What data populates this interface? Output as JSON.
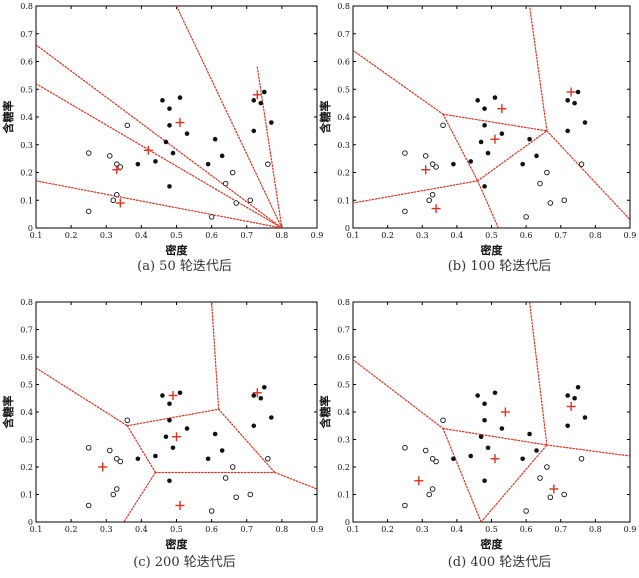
{
  "colors": {
    "boundary": "#e0301e",
    "centroid": "#e0301e",
    "point": "#111111",
    "frame": "#000000"
  },
  "chart_data": [
    {
      "type": "scatter",
      "title": "(a) 50 轮迭代后",
      "xlabel": "密度",
      "ylabel": "含糖率",
      "xlim": [
        0.1,
        0.9
      ],
      "ylim": [
        0,
        0.8
      ],
      "xticks": [
        "0.1",
        "0.2",
        "0.3",
        "0.4",
        "0.5",
        "0.6",
        "0.7",
        "0.8",
        "0.9"
      ],
      "yticks": [
        "0",
        "0.1",
        "0.2",
        "0.3",
        "0.4",
        "0.5",
        "0.6",
        "0.7",
        "0.8"
      ],
      "filled_points": [
        [
          0.36,
          0.37
        ],
        [
          0.46,
          0.46
        ],
        [
          0.48,
          0.43
        ],
        [
          0.51,
          0.47
        ],
        [
          0.48,
          0.37
        ],
        [
          0.53,
          0.34
        ],
        [
          0.47,
          0.31
        ],
        [
          0.44,
          0.24
        ],
        [
          0.39,
          0.23
        ],
        [
          0.49,
          0.27
        ],
        [
          0.48,
          0.15
        ],
        [
          0.61,
          0.32
        ],
        [
          0.63,
          0.26
        ],
        [
          0.72,
          0.46
        ],
        [
          0.74,
          0.45
        ],
        [
          0.75,
          0.49
        ],
        [
          0.77,
          0.38
        ],
        [
          0.72,
          0.35
        ],
        [
          0.59,
          0.23
        ]
      ],
      "open_points": [
        [
          0.36,
          0.37
        ],
        [
          0.25,
          0.27
        ],
        [
          0.31,
          0.26
        ],
        [
          0.34,
          0.22
        ],
        [
          0.33,
          0.12
        ],
        [
          0.25,
          0.06
        ],
        [
          0.32,
          0.1
        ],
        [
          0.33,
          0.23
        ],
        [
          0.64,
          0.16
        ],
        [
          0.66,
          0.2
        ],
        [
          0.6,
          0.04
        ],
        [
          0.67,
          0.09
        ],
        [
          0.71,
          0.1
        ],
        [
          0.76,
          0.23
        ]
      ],
      "centroids": [
        [
          0.33,
          0.21
        ],
        [
          0.42,
          0.28
        ],
        [
          0.51,
          0.38
        ],
        [
          0.73,
          0.48
        ],
        [
          0.34,
          0.09
        ]
      ],
      "boundaries": [
        [
          [
            0.1,
            0.66
          ],
          [
            0.8,
            0.0
          ]
        ],
        [
          [
            0.1,
            0.52
          ],
          [
            0.8,
            0.0
          ]
        ],
        [
          [
            0.1,
            0.17
          ],
          [
            0.8,
            0.0
          ]
        ],
        [
          [
            0.5,
            0.8
          ],
          [
            0.8,
            0.0
          ]
        ],
        [
          [
            0.73,
            0.58
          ],
          [
            0.8,
            0.0
          ]
        ]
      ]
    },
    {
      "type": "scatter",
      "title": "(b) 100 轮迭代后",
      "xlabel": "密度",
      "ylabel": "含糖率",
      "xlim": [
        0.1,
        0.9
      ],
      "ylim": [
        0,
        0.8
      ],
      "xticks": [
        "0.1",
        "0.2",
        "0.3",
        "0.4",
        "0.5",
        "0.6",
        "0.7",
        "0.8",
        "0.9"
      ],
      "yticks": [
        "0",
        "0.1",
        "0.2",
        "0.3",
        "0.4",
        "0.5",
        "0.6",
        "0.7",
        "0.8"
      ],
      "filled_points": [
        [
          0.36,
          0.37
        ],
        [
          0.46,
          0.46
        ],
        [
          0.48,
          0.43
        ],
        [
          0.51,
          0.47
        ],
        [
          0.48,
          0.37
        ],
        [
          0.53,
          0.34
        ],
        [
          0.47,
          0.31
        ],
        [
          0.44,
          0.24
        ],
        [
          0.39,
          0.23
        ],
        [
          0.49,
          0.27
        ],
        [
          0.48,
          0.15
        ],
        [
          0.61,
          0.32
        ],
        [
          0.63,
          0.26
        ],
        [
          0.72,
          0.46
        ],
        [
          0.74,
          0.45
        ],
        [
          0.75,
          0.49
        ],
        [
          0.77,
          0.38
        ],
        [
          0.72,
          0.35
        ],
        [
          0.59,
          0.23
        ]
      ],
      "open_points": [
        [
          0.36,
          0.37
        ],
        [
          0.25,
          0.27
        ],
        [
          0.31,
          0.26
        ],
        [
          0.34,
          0.22
        ],
        [
          0.33,
          0.12
        ],
        [
          0.25,
          0.06
        ],
        [
          0.32,
          0.1
        ],
        [
          0.33,
          0.23
        ],
        [
          0.64,
          0.16
        ],
        [
          0.66,
          0.2
        ],
        [
          0.6,
          0.04
        ],
        [
          0.67,
          0.09
        ],
        [
          0.71,
          0.1
        ],
        [
          0.76,
          0.23
        ]
      ],
      "centroids": [
        [
          0.31,
          0.21
        ],
        [
          0.34,
          0.07
        ],
        [
          0.51,
          0.32
        ],
        [
          0.53,
          0.43
        ],
        [
          0.73,
          0.49
        ]
      ],
      "boundaries": [
        [
          [
            0.1,
            0.64
          ],
          [
            0.36,
            0.41
          ]
        ],
        [
          [
            0.36,
            0.41
          ],
          [
            0.66,
            0.35
          ]
        ],
        [
          [
            0.66,
            0.35
          ],
          [
            0.61,
            0.8
          ]
        ],
        [
          [
            0.66,
            0.35
          ],
          [
            0.9,
            0.03
          ]
        ],
        [
          [
            0.36,
            0.41
          ],
          [
            0.46,
            0.17
          ]
        ],
        [
          [
            0.46,
            0.17
          ],
          [
            0.66,
            0.35
          ]
        ],
        [
          [
            0.46,
            0.17
          ],
          [
            0.1,
            0.09
          ]
        ],
        [
          [
            0.46,
            0.17
          ],
          [
            0.52,
            0.0
          ]
        ]
      ]
    },
    {
      "type": "scatter",
      "title": "(c) 200 轮迭代后",
      "xlabel": "密度",
      "ylabel": "含糖率",
      "xlim": [
        0.1,
        0.9
      ],
      "ylim": [
        0,
        0.8
      ],
      "xticks": [
        "0.1",
        "0.2",
        "0.3",
        "0.4",
        "0.5",
        "0.6",
        "0.7",
        "0.8",
        "0.9"
      ],
      "yticks": [
        "0",
        "0.1",
        "0.2",
        "0.3",
        "0.4",
        "0.5",
        "0.6",
        "0.7",
        "0.8"
      ],
      "filled_points": [
        [
          0.36,
          0.37
        ],
        [
          0.46,
          0.46
        ],
        [
          0.48,
          0.43
        ],
        [
          0.51,
          0.47
        ],
        [
          0.48,
          0.37
        ],
        [
          0.53,
          0.34
        ],
        [
          0.47,
          0.31
        ],
        [
          0.44,
          0.24
        ],
        [
          0.39,
          0.23
        ],
        [
          0.49,
          0.27
        ],
        [
          0.48,
          0.15
        ],
        [
          0.61,
          0.32
        ],
        [
          0.63,
          0.26
        ],
        [
          0.72,
          0.46
        ],
        [
          0.74,
          0.45
        ],
        [
          0.75,
          0.49
        ],
        [
          0.77,
          0.38
        ],
        [
          0.72,
          0.35
        ],
        [
          0.59,
          0.23
        ]
      ],
      "open_points": [
        [
          0.36,
          0.37
        ],
        [
          0.25,
          0.27
        ],
        [
          0.31,
          0.26
        ],
        [
          0.34,
          0.22
        ],
        [
          0.33,
          0.12
        ],
        [
          0.25,
          0.06
        ],
        [
          0.32,
          0.1
        ],
        [
          0.33,
          0.23
        ],
        [
          0.64,
          0.16
        ],
        [
          0.66,
          0.2
        ],
        [
          0.6,
          0.04
        ],
        [
          0.67,
          0.09
        ],
        [
          0.71,
          0.1
        ],
        [
          0.76,
          0.23
        ]
      ],
      "centroids": [
        [
          0.29,
          0.2
        ],
        [
          0.5,
          0.31
        ],
        [
          0.49,
          0.46
        ],
        [
          0.73,
          0.47
        ],
        [
          0.51,
          0.06
        ]
      ],
      "boundaries": [
        [
          [
            0.1,
            0.56
          ],
          [
            0.36,
            0.35
          ]
        ],
        [
          [
            0.36,
            0.35
          ],
          [
            0.62,
            0.41
          ]
        ],
        [
          [
            0.62,
            0.41
          ],
          [
            0.6,
            0.8
          ]
        ],
        [
          [
            0.62,
            0.41
          ],
          [
            0.78,
            0.18
          ]
        ],
        [
          [
            0.36,
            0.35
          ],
          [
            0.44,
            0.18
          ]
        ],
        [
          [
            0.44,
            0.18
          ],
          [
            0.78,
            0.18
          ]
        ],
        [
          [
            0.78,
            0.18
          ],
          [
            0.9,
            0.12
          ]
        ],
        [
          [
            0.44,
            0.18
          ],
          [
            0.35,
            0.0
          ]
        ]
      ]
    },
    {
      "type": "scatter",
      "title": "(d) 400 轮迭代后",
      "xlabel": "密度",
      "ylabel": "含糖率",
      "xlim": [
        0.1,
        0.9
      ],
      "ylim": [
        0,
        0.8
      ],
      "xticks": [
        "0.1",
        "0.2",
        "0.3",
        "0.4",
        "0.5",
        "0.6",
        "0.7",
        "0.8",
        "0.9"
      ],
      "yticks": [
        "0",
        "0.1",
        "0.2",
        "0.3",
        "0.4",
        "0.5",
        "0.6",
        "0.7",
        "0.8"
      ],
      "filled_points": [
        [
          0.36,
          0.37
        ],
        [
          0.46,
          0.46
        ],
        [
          0.48,
          0.43
        ],
        [
          0.51,
          0.47
        ],
        [
          0.48,
          0.37
        ],
        [
          0.53,
          0.34
        ],
        [
          0.47,
          0.31
        ],
        [
          0.44,
          0.24
        ],
        [
          0.39,
          0.23
        ],
        [
          0.49,
          0.27
        ],
        [
          0.48,
          0.15
        ],
        [
          0.61,
          0.32
        ],
        [
          0.63,
          0.26
        ],
        [
          0.72,
          0.46
        ],
        [
          0.74,
          0.45
        ],
        [
          0.75,
          0.49
        ],
        [
          0.77,
          0.38
        ],
        [
          0.72,
          0.35
        ],
        [
          0.59,
          0.23
        ]
      ],
      "open_points": [
        [
          0.36,
          0.37
        ],
        [
          0.25,
          0.27
        ],
        [
          0.31,
          0.26
        ],
        [
          0.34,
          0.22
        ],
        [
          0.33,
          0.12
        ],
        [
          0.25,
          0.06
        ],
        [
          0.32,
          0.1
        ],
        [
          0.33,
          0.23
        ],
        [
          0.64,
          0.16
        ],
        [
          0.66,
          0.2
        ],
        [
          0.6,
          0.04
        ],
        [
          0.67,
          0.09
        ],
        [
          0.71,
          0.1
        ],
        [
          0.76,
          0.23
        ]
      ],
      "centroids": [
        [
          0.29,
          0.15
        ],
        [
          0.51,
          0.23
        ],
        [
          0.54,
          0.4
        ],
        [
          0.73,
          0.42
        ],
        [
          0.68,
          0.12
        ]
      ],
      "boundaries": [
        [
          [
            0.1,
            0.59
          ],
          [
            0.36,
            0.34
          ]
        ],
        [
          [
            0.36,
            0.34
          ],
          [
            0.66,
            0.28
          ]
        ],
        [
          [
            0.66,
            0.28
          ],
          [
            0.61,
            0.8
          ]
        ],
        [
          [
            0.66,
            0.28
          ],
          [
            0.9,
            0.24
          ]
        ],
        [
          [
            0.36,
            0.34
          ],
          [
            0.47,
            0.0
          ]
        ],
        [
          [
            0.47,
            0.0
          ],
          [
            0.66,
            0.28
          ]
        ]
      ]
    }
  ]
}
